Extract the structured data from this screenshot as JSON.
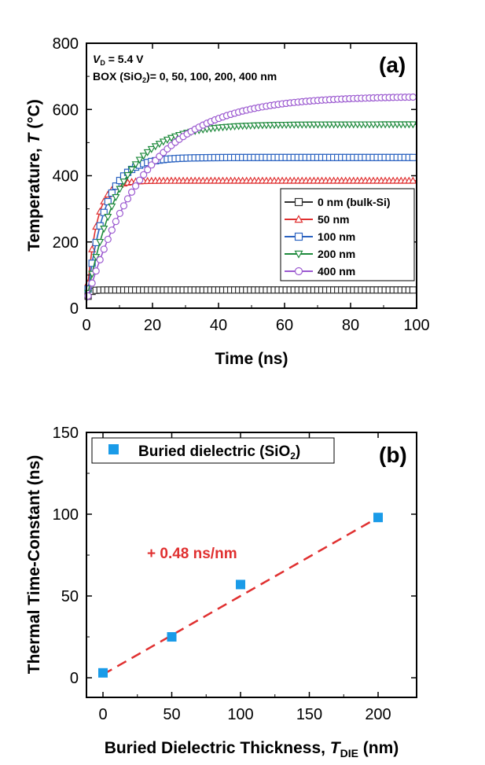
{
  "chart_data": [
    {
      "type": "line",
      "panel_label": "(a)",
      "annotations": {
        "vd_symbol": "V",
        "vd_sub": "D",
        "vd_value": " = 5.4 V",
        "box_prefix": "BOX (SiO",
        "box_sub": "2",
        "box_suffix": ")= 0, 50, 100, 200, 400 nm"
      },
      "xlabel": "Time (ns)",
      "ylabel_prefix": "Temperature, ",
      "ylabel_var": "T",
      "ylabel_suffix": " (°C)",
      "xlim": [
        0,
        100
      ],
      "ylim": [
        0,
        800
      ],
      "xticks": [
        "0",
        "20",
        "40",
        "60",
        "80",
        "100"
      ],
      "yticks": [
        "0",
        "200",
        "400",
        "600",
        "800"
      ],
      "legend_position": "lower-right",
      "series": [
        {
          "name": "0 nm (bulk-Si)",
          "color": "#303030",
          "marker": "square",
          "asymptote": 55,
          "tau": 0.8
        },
        {
          "name": "50 nm",
          "color": "#e03030",
          "marker": "triangle-up",
          "asymptote": 385,
          "tau": 3.0
        },
        {
          "name": "100 nm",
          "color": "#2a62c0",
          "marker": "square",
          "asymptote": 455,
          "tau": 5.5
        },
        {
          "name": "200 nm",
          "color": "#1e8a3c",
          "marker": "triangle-down",
          "asymptote": 555,
          "tau": 10
        },
        {
          "name": "400 nm",
          "color": "#9b59d0",
          "marker": "circle",
          "asymptote": 640,
          "tau": 18
        }
      ]
    },
    {
      "type": "scatter",
      "panel_label": "(b)",
      "legend_label_prefix": "Buried dielectric (SiO",
      "legend_label_sub": "2",
      "legend_label_suffix": ")",
      "legend_position": "top-left",
      "xlabel_prefix": "Buried Dielectric Thickness, ",
      "xlabel_var": "T",
      "xlabel_sub": "DIE",
      "xlabel_suffix": " (nm)",
      "ylabel": "Thermal Time-Constant (ns)",
      "xlim": [
        -12,
        228
      ],
      "ylim": [
        -12,
        150
      ],
      "xticks": [
        "0",
        "50",
        "100",
        "150",
        "200"
      ],
      "yticks": [
        "0",
        "50",
        "100",
        "150"
      ],
      "x": [
        0,
        50,
        100,
        200
      ],
      "y": [
        3,
        25,
        57,
        98
      ],
      "point_color": "#1a9be8",
      "fit": {
        "label": "+ 0.48 ns/nm",
        "slope": 0.48,
        "intercept": 2,
        "x_range": [
          0,
          200
        ],
        "color": "#e03030"
      }
    }
  ]
}
